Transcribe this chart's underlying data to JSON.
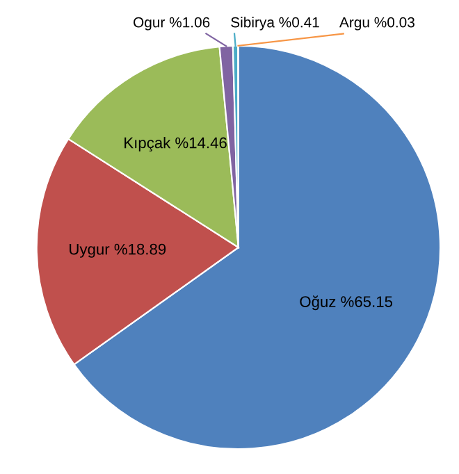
{
  "chart_data": {
    "type": "pie",
    "categories": [
      "Oğuz",
      "Uygur",
      "Kıpçak",
      "Ogur",
      "Sibirya",
      "Argu"
    ],
    "values": [
      65.15,
      18.89,
      14.46,
      1.06,
      0.41,
      0.03
    ],
    "value_labels": [
      "%65.15",
      "%18.89",
      "%14.46",
      "%1.06",
      "%0.41",
      "%0.03"
    ],
    "colors": [
      "#4f81bd",
      "#c0504d",
      "#9bbb59",
      "#8064a2",
      "#4bacc6",
      "#f79646"
    ],
    "legend": false
  }
}
